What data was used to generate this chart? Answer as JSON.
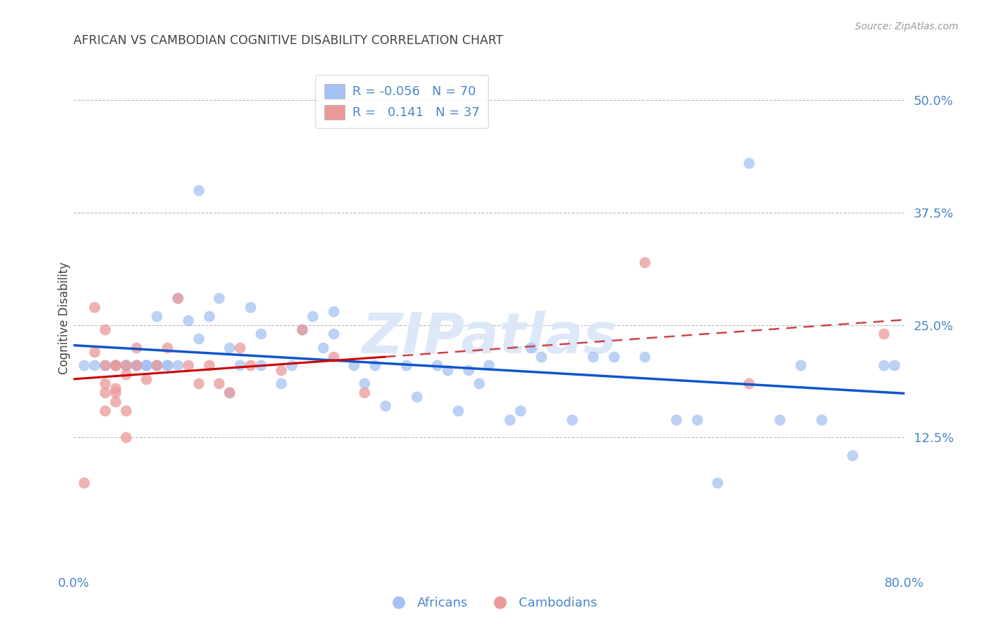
{
  "title": "AFRICAN VS CAMBODIAN COGNITIVE DISABILITY CORRELATION CHART",
  "source": "Source: ZipAtlas.com",
  "ylabel": "Cognitive Disability",
  "legend_african_R": "-0.056",
  "legend_african_N": "70",
  "legend_cambodian_R": "0.141",
  "legend_cambodian_N": "37",
  "african_color": "#a4c2f4",
  "cambodian_color": "#ea9999",
  "african_line_color": "#1155cc",
  "cambodian_line_color": "#cc0000",
  "cambodian_dashed_color": "#cc4444",
  "background_color": "#ffffff",
  "grid_color": "#bbbbbb",
  "title_color": "#434343",
  "axis_color": "#4a86c8",
  "source_color": "#999999",
  "watermark_color": "#dce8f8",
  "xlim": [
    0.0,
    0.8
  ],
  "ylim": [
    -0.02,
    0.535
  ],
  "african_x": [
    0.01,
    0.02,
    0.03,
    0.04,
    0.04,
    0.05,
    0.05,
    0.05,
    0.06,
    0.06,
    0.06,
    0.07,
    0.07,
    0.07,
    0.07,
    0.08,
    0.08,
    0.08,
    0.09,
    0.09,
    0.1,
    0.1,
    0.11,
    0.12,
    0.12,
    0.13,
    0.14,
    0.15,
    0.15,
    0.16,
    0.17,
    0.18,
    0.18,
    0.2,
    0.21,
    0.22,
    0.23,
    0.24,
    0.25,
    0.25,
    0.27,
    0.28,
    0.29,
    0.3,
    0.32,
    0.33,
    0.35,
    0.36,
    0.37,
    0.38,
    0.39,
    0.4,
    0.42,
    0.43,
    0.44,
    0.45,
    0.48,
    0.5,
    0.52,
    0.55,
    0.58,
    0.6,
    0.62,
    0.65,
    0.68,
    0.7,
    0.72,
    0.75,
    0.78,
    0.79
  ],
  "african_y": [
    0.205,
    0.205,
    0.205,
    0.205,
    0.205,
    0.205,
    0.205,
    0.205,
    0.205,
    0.205,
    0.205,
    0.205,
    0.205,
    0.205,
    0.205,
    0.26,
    0.205,
    0.205,
    0.205,
    0.205,
    0.28,
    0.205,
    0.255,
    0.235,
    0.4,
    0.26,
    0.28,
    0.175,
    0.225,
    0.205,
    0.27,
    0.24,
    0.205,
    0.185,
    0.205,
    0.245,
    0.26,
    0.225,
    0.265,
    0.24,
    0.205,
    0.185,
    0.205,
    0.16,
    0.205,
    0.17,
    0.205,
    0.2,
    0.155,
    0.2,
    0.185,
    0.205,
    0.145,
    0.155,
    0.225,
    0.215,
    0.145,
    0.215,
    0.215,
    0.215,
    0.145,
    0.145,
    0.075,
    0.43,
    0.145,
    0.205,
    0.145,
    0.105,
    0.205,
    0.205
  ],
  "cambodian_x": [
    0.01,
    0.02,
    0.02,
    0.03,
    0.03,
    0.03,
    0.03,
    0.03,
    0.04,
    0.04,
    0.04,
    0.04,
    0.04,
    0.05,
    0.05,
    0.05,
    0.05,
    0.06,
    0.06,
    0.07,
    0.08,
    0.09,
    0.1,
    0.11,
    0.12,
    0.13,
    0.14,
    0.15,
    0.16,
    0.17,
    0.2,
    0.22,
    0.25,
    0.28,
    0.55,
    0.65,
    0.78
  ],
  "cambodian_y": [
    0.075,
    0.27,
    0.22,
    0.245,
    0.185,
    0.205,
    0.175,
    0.155,
    0.18,
    0.165,
    0.175,
    0.205,
    0.205,
    0.195,
    0.205,
    0.155,
    0.125,
    0.205,
    0.225,
    0.19,
    0.205,
    0.225,
    0.28,
    0.205,
    0.185,
    0.205,
    0.185,
    0.175,
    0.225,
    0.205,
    0.2,
    0.245,
    0.215,
    0.175,
    0.32,
    0.185,
    0.24
  ]
}
